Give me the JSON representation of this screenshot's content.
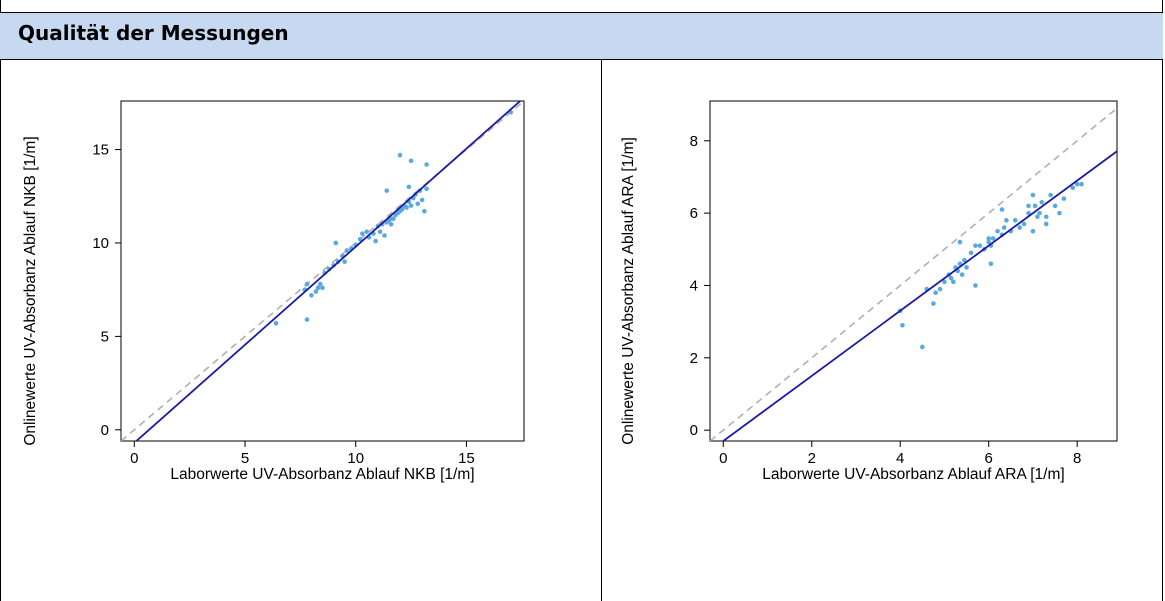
{
  "header": {
    "title": "Qualität der Messungen"
  },
  "colors": {
    "header_bg": "#c6d9f0",
    "points": "#5aa9dc",
    "regression": "#1a1aa8",
    "identity": "#b0b0b0"
  },
  "chart_data": [
    {
      "type": "scatter",
      "xlabel": "Laborwerte UV-Absorbanz Ablauf NKB [1/m]",
      "ylabel": "Onlinewerte UV-Absorbanz Ablauf NKB [1/m]",
      "xlim": [
        -0.6,
        17.6
      ],
      "ylim": [
        -0.6,
        17.6
      ],
      "xticks": [
        0,
        5,
        10,
        15
      ],
      "yticks": [
        0,
        5,
        10,
        15
      ],
      "identity_line": true,
      "regression": {
        "slope": 1.05,
        "intercept": -0.7
      },
      "x": [
        6.4,
        7.7,
        7.8,
        8.0,
        8.2,
        8.3,
        8.4,
        8.5,
        8.6,
        8.8,
        9.0,
        9.2,
        9.4,
        9.5,
        9.6,
        9.8,
        10.0,
        10.2,
        10.3,
        10.5,
        10.6,
        10.8,
        10.9,
        11.0,
        11.1,
        11.2,
        11.3,
        11.4,
        11.5,
        11.6,
        11.7,
        11.8,
        11.9,
        12.0,
        12.1,
        12.2,
        12.3,
        12.4,
        12.5,
        12.6,
        12.7,
        12.8,
        12.9,
        13.0,
        13.1,
        13.2,
        12.0,
        12.5,
        11.4,
        12.4,
        13.2,
        9.1,
        7.8,
        11.6,
        17.0
      ],
      "y": [
        5.7,
        7.5,
        5.9,
        7.2,
        7.4,
        7.6,
        7.8,
        7.6,
        8.4,
        8.6,
        8.8,
        9.0,
        9.3,
        9.0,
        9.6,
        9.7,
        9.9,
        10.2,
        10.5,
        10.6,
        10.3,
        10.5,
        10.1,
        10.9,
        10.6,
        11.0,
        10.4,
        11.1,
        11.2,
        11.0,
        11.3,
        11.5,
        11.6,
        11.7,
        11.8,
        12.0,
        11.9,
        12.2,
        12.0,
        12.4,
        12.6,
        12.1,
        12.8,
        12.3,
        11.7,
        12.9,
        14.7,
        14.4,
        12.8,
        13.0,
        14.2,
        10.0,
        7.8,
        11.3,
        17.0
      ]
    },
    {
      "type": "scatter",
      "xlabel": "Laborwerte UV-Absorbanz Ablauf ARA [1/m]",
      "ylabel": "Onlinewerte UV-Absorbanz Ablauf ARA [1/m]",
      "xlim": [
        -0.3,
        8.9
      ],
      "ylim": [
        -0.3,
        9.1
      ],
      "xticks": [
        0,
        2,
        4,
        6,
        8
      ],
      "yticks": [
        0,
        2,
        4,
        6,
        8
      ],
      "identity_line": true,
      "regression": {
        "slope": 0.9,
        "intercept": -0.3
      },
      "x": [
        4.0,
        4.05,
        4.5,
        4.6,
        4.75,
        4.8,
        4.9,
        5.0,
        5.1,
        5.15,
        5.2,
        5.25,
        5.3,
        5.35,
        5.4,
        5.45,
        5.5,
        5.6,
        5.7,
        5.8,
        5.9,
        6.0,
        6.05,
        6.1,
        6.2,
        6.3,
        6.35,
        6.4,
        6.5,
        6.6,
        6.7,
        6.8,
        6.9,
        7.0,
        7.05,
        7.1,
        7.15,
        7.2,
        7.3,
        7.4,
        7.5,
        7.6,
        7.7,
        7.9,
        8.0,
        8.1,
        6.3,
        5.35,
        6.05,
        7.0,
        6.9,
        5.7,
        6.0,
        7.3
      ],
      "y": [
        3.3,
        2.9,
        2.3,
        3.9,
        3.5,
        3.8,
        3.9,
        4.1,
        4.3,
        4.2,
        4.1,
        4.5,
        4.4,
        4.6,
        4.3,
        4.7,
        4.5,
        4.9,
        5.1,
        5.1,
        5.0,
        5.2,
        4.6,
        5.3,
        5.5,
        5.4,
        5.6,
        5.8,
        5.5,
        5.8,
        5.6,
        5.7,
        6.0,
        5.5,
        6.2,
        5.9,
        6.0,
        6.3,
        5.7,
        6.5,
        6.2,
        6.0,
        6.4,
        6.7,
        6.8,
        6.8,
        6.1,
        5.2,
        5.1,
        6.5,
        6.2,
        4.0,
        5.3,
        5.9
      ]
    }
  ]
}
